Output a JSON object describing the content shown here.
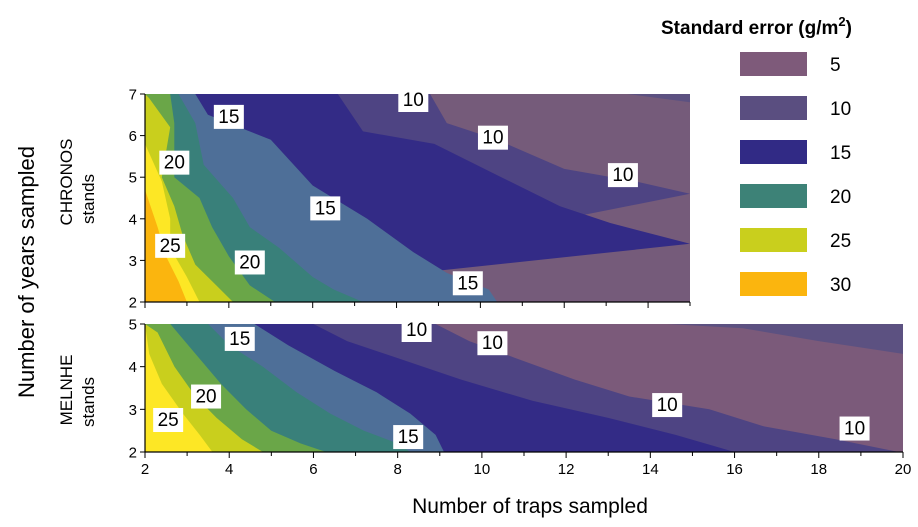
{
  "figure": {
    "ylabel": "Number of years sampled",
    "xlabel": "Number of traps sampled"
  },
  "legend": {
    "title": "Standard error (g/m",
    "title_sup": "2",
    "title_close": ")",
    "items": [
      {
        "label": "5",
        "color": "#7e5a7a"
      },
      {
        "label": "10",
        "color": "#5a4e80"
      },
      {
        "label": "15",
        "color": "#312a85"
      },
      {
        "label": "20",
        "color": "#3d8277"
      },
      {
        "label": "25",
        "color": "#c9cf1d"
      },
      {
        "label": "30",
        "color": "#fbb50e"
      }
    ]
  },
  "chart_data": [
    {
      "type": "heatmap",
      "title": "",
      "panel_label": [
        "CHRONOS",
        "stands"
      ],
      "xlim": [
        2,
        15
      ],
      "ylim": [
        2,
        7
      ],
      "yticks": [
        "2",
        "3",
        "4",
        "5",
        "6",
        "7"
      ],
      "levels": [
        5,
        10,
        15,
        20,
        25,
        30
      ],
      "level_colors": [
        "#755b7a",
        "#5c5181",
        "#4e4483",
        "#332b86",
        "#4e6f98",
        "#39807a",
        "#6aa648",
        "#c9cf1d",
        "#fde725",
        "#fbb50e"
      ],
      "contour_labels": [
        {
          "text": "25",
          "x": 2.6,
          "y": 3.35
        },
        {
          "text": "20",
          "x": 2.7,
          "y": 5.35
        },
        {
          "text": "20",
          "x": 4.5,
          "y": 2.95
        },
        {
          "text": "15",
          "x": 4.0,
          "y": 6.45
        },
        {
          "text": "15",
          "x": 6.3,
          "y": 4.25
        },
        {
          "text": "15",
          "x": 9.7,
          "y": 2.45
        },
        {
          "text": "10",
          "x": 8.4,
          "y": 7.0
        },
        {
          "text": "10",
          "x": 10.3,
          "y": 5.95
        },
        {
          "text": "10",
          "x": 13.4,
          "y": 5.05
        }
      ]
    },
    {
      "type": "heatmap",
      "title": "",
      "panel_label": [
        "MELNHE",
        "stands"
      ],
      "xlabel": "Number of traps sampled",
      "xlim": [
        2,
        20
      ],
      "ylim": [
        2,
        5
      ],
      "xticks": [
        "2",
        "4",
        "6",
        "8",
        "10",
        "12",
        "14",
        "16",
        "18",
        "20"
      ],
      "yticks": [
        "2",
        "3",
        "4",
        "5"
      ],
      "levels": [
        5,
        10,
        15,
        20,
        25,
        30
      ],
      "level_colors": [
        "#7b5a7a",
        "#5c5181",
        "#4e4483",
        "#332b86",
        "#4e6f98",
        "#39807a",
        "#6aa648",
        "#c9cf1d",
        "#fde725"
      ],
      "contour_labels": [
        {
          "text": "25",
          "x": 2.55,
          "y": 2.75
        },
        {
          "text": "20",
          "x": 3.45,
          "y": 3.3
        },
        {
          "text": "15",
          "x": 4.25,
          "y": 4.65
        },
        {
          "text": "15",
          "x": 8.25,
          "y": 2.35
        },
        {
          "text": "10",
          "x": 8.45,
          "y": 5.0
        },
        {
          "text": "10",
          "x": 10.25,
          "y": 4.55
        },
        {
          "text": "10",
          "x": 14.4,
          "y": 3.1
        },
        {
          "text": "10",
          "x": 18.85,
          "y": 2.55
        }
      ]
    }
  ]
}
